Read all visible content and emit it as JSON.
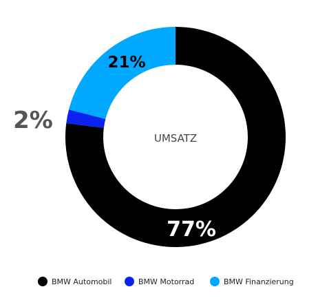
{
  "chart_data": {
    "type": "pie",
    "center_label": "UMSATZ",
    "categories": [
      "BMW Automobil",
      "BMW Motorrad",
      "BMW Finanzierung"
    ],
    "values": [
      77,
      2,
      21
    ],
    "value_labels": [
      "77%",
      "2%",
      "21%"
    ],
    "colors": [
      "#000000",
      "#0a23f0",
      "#00a9ff"
    ],
    "legend_position": "bottom"
  }
}
